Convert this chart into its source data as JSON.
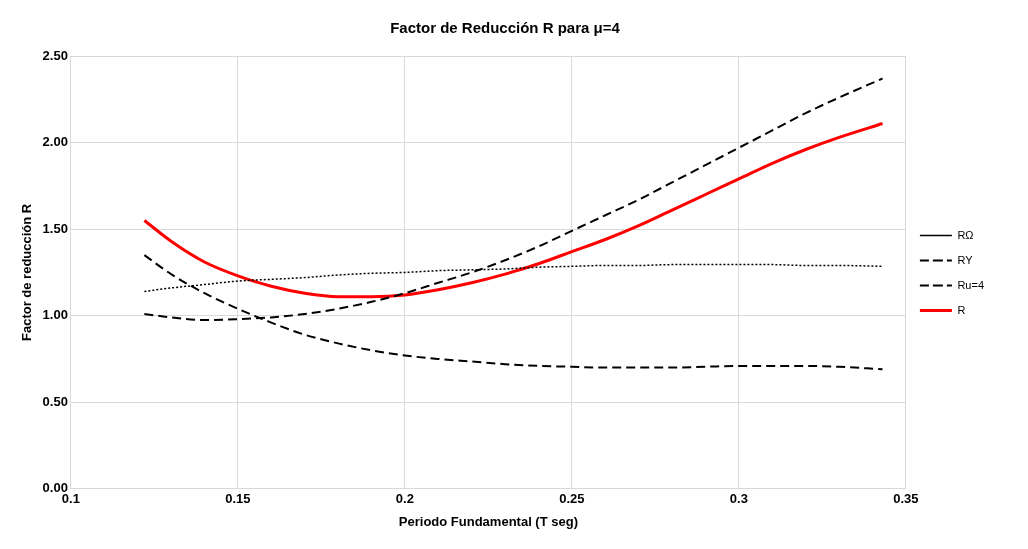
{
  "chart_data": {
    "type": "line",
    "title": "Factor de Reducción R para μ=4",
    "xlabel": "Periodo Fundamental (T seg)",
    "ylabel": "Factor de reducción R",
    "x": [
      0.122,
      0.13,
      0.14,
      0.15,
      0.16,
      0.17,
      0.18,
      0.19,
      0.2,
      0.21,
      0.22,
      0.23,
      0.24,
      0.25,
      0.26,
      0.27,
      0.28,
      0.29,
      0.3,
      0.31,
      0.32,
      0.33,
      0.343
    ],
    "series": [
      {
        "name": "RΩ",
        "color": "#000000",
        "line_style": "dotted",
        "values": [
          1.14,
          1.16,
          1.18,
          1.2,
          1.21,
          1.22,
          1.235,
          1.245,
          1.25,
          1.26,
          1.265,
          1.27,
          1.28,
          1.285,
          1.29,
          1.29,
          1.295,
          1.295,
          1.295,
          1.295,
          1.29,
          1.29,
          1.285
        ]
      },
      {
        "name": "RY",
        "color": "#000000",
        "line_style": "dashed",
        "values": [
          1.35,
          1.24,
          1.13,
          1.04,
          0.96,
          0.89,
          0.84,
          0.8,
          0.77,
          0.75,
          0.735,
          0.72,
          0.71,
          0.705,
          0.7,
          0.7,
          0.7,
          0.705,
          0.71,
          0.71,
          0.71,
          0.705,
          0.69
        ]
      },
      {
        "name": "Ru=4",
        "color": "#000000",
        "line_style": "dashed",
        "values": [
          1.01,
          0.99,
          0.975,
          0.98,
          0.99,
          1.01,
          1.04,
          1.08,
          1.13,
          1.19,
          1.25,
          1.32,
          1.4,
          1.49,
          1.58,
          1.67,
          1.77,
          1.87,
          1.97,
          2.07,
          2.17,
          2.26,
          2.37
        ]
      },
      {
        "name": "R",
        "color": "#ff0000",
        "line_style": "solid",
        "values": [
          1.55,
          1.43,
          1.31,
          1.23,
          1.17,
          1.13,
          1.11,
          1.11,
          1.12,
          1.15,
          1.19,
          1.24,
          1.3,
          1.37,
          1.44,
          1.52,
          1.61,
          1.7,
          1.79,
          1.88,
          1.96,
          2.03,
          2.11
        ]
      }
    ],
    "xlim": [
      0.1,
      0.35
    ],
    "xticks": [
      0.1,
      0.15,
      0.2,
      0.25,
      0.3,
      0.35
    ],
    "ylim": [
      0,
      2.5
    ],
    "yticks": [
      {
        "value": 0,
        "label": "0.00"
      },
      {
        "value": 0.5,
        "label": "0.50"
      },
      {
        "value": 1,
        "label": "1.00"
      },
      {
        "value": 1.5,
        "label": "1.50"
      },
      {
        "value": 2,
        "label": "2.00"
      },
      {
        "value": 2.5,
        "label": "2.50"
      }
    ],
    "grid": true,
    "legend": "right",
    "marker": "none"
  }
}
